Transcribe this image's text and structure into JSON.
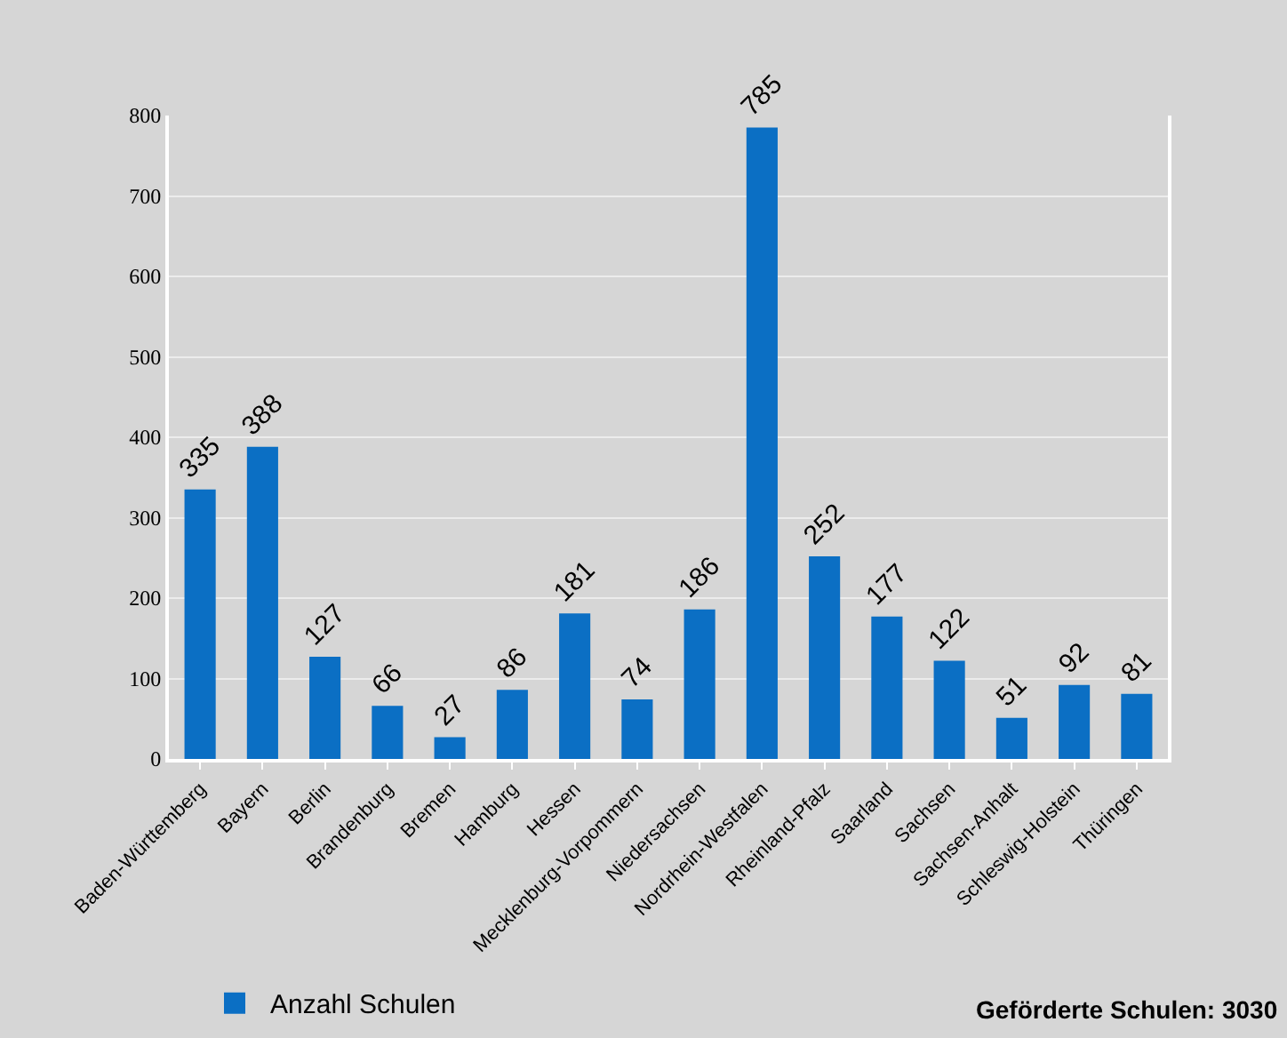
{
  "chart_data": {
    "type": "bar",
    "categories": [
      "Baden-Württemberg",
      "Bayern",
      "Berlin",
      "Brandenburg",
      "Bremen",
      "Hamburg",
      "Hessen",
      "Mecklenburg-Vorpommern",
      "Niedersachsen",
      "Nordrhein-Westfalen",
      "Rheinland-Pfalz",
      "Saarland",
      "Sachsen",
      "Sachsen-Anhalt",
      "Schleswig-Holstein",
      "Thüringen"
    ],
    "series": [
      {
        "name": "Anzahl Schulen",
        "color": "#0b6fc4",
        "values": [
          335,
          388,
          127,
          66,
          27,
          86,
          181,
          74,
          186,
          785,
          252,
          177,
          122,
          51,
          92,
          81
        ]
      }
    ],
    "ylim": [
      0,
      800
    ],
    "yticks": [
      0,
      100,
      200,
      300,
      400,
      500,
      600,
      700,
      800
    ],
    "grid": "y",
    "legend": "bottom left",
    "data_labels": true,
    "annotations": [
      "Geförderte Schulen: 3030"
    ]
  }
}
